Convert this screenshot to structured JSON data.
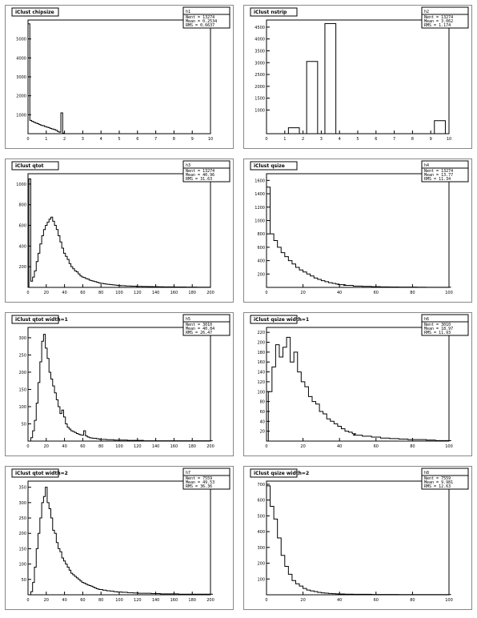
{
  "chart_data": [
    {
      "type": "bar",
      "title": "iClust chipsize",
      "xmin": 0,
      "xmax": 10,
      "xticks": [
        "0",
        "1",
        "2",
        "3",
        "4",
        "5",
        "6",
        "7",
        "8",
        "9",
        "10"
      ],
      "yticks": [
        "1000",
        "2000",
        "3000",
        "4000",
        "5000"
      ],
      "ymax": 6000,
      "stats": {
        "name": "h1",
        "entries": "13274",
        "mean": "0.2534",
        "rms": "0.6637"
      },
      "x": [
        0.05,
        0.15,
        0.25,
        0.35,
        0.45,
        0.55,
        0.65,
        0.75,
        0.85,
        0.95,
        1.05,
        1.15,
        1.25,
        1.35,
        1.45,
        1.55,
        1.65,
        1.75,
        1.85,
        1.95
      ],
      "values": [
        5800,
        700,
        650,
        600,
        560,
        530,
        480,
        440,
        420,
        380,
        350,
        320,
        280,
        250,
        220,
        180,
        120,
        80,
        1100,
        30
      ]
    },
    {
      "type": "bar",
      "title": "iClust nstrip",
      "xmin": 0,
      "xmax": 10,
      "xticks": [
        "0",
        "1",
        "2",
        "3",
        "4",
        "5",
        "6",
        "7",
        "8",
        "9",
        "10"
      ],
      "yticks": [
        "1000",
        "1500",
        "2000",
        "2500",
        "3000",
        "3500",
        "4000",
        "4500"
      ],
      "ymax": 4800,
      "stats": {
        "name": "h2",
        "entries": "13274",
        "mean": "3.062",
        "rms": "1.174"
      },
      "x": [
        1.5,
        2.5,
        3.5,
        9.5
      ],
      "values": [
        250,
        3050,
        4650,
        550
      ]
    },
    {
      "type": "bar",
      "title": "iClust qtot",
      "xmin": 0,
      "xmax": 200,
      "xticks": [
        "0",
        "20",
        "40",
        "60",
        "80",
        "100",
        "120",
        "140",
        "160",
        "180",
        "200"
      ],
      "yticks": [
        "200",
        "400",
        "600",
        "800",
        "1000"
      ],
      "ymax": 1100,
      "stats": {
        "name": "h3",
        "entries": "13274",
        "mean": "40.96",
        "rms": "31.63"
      },
      "x": [
        2,
        4,
        6,
        8,
        10,
        12,
        14,
        16,
        18,
        20,
        22,
        24,
        26,
        28,
        30,
        32,
        34,
        36,
        38,
        40,
        42,
        44,
        46,
        48,
        50,
        52,
        54,
        56,
        58,
        60,
        62,
        64,
        66,
        68,
        70,
        72,
        74,
        76,
        78,
        80,
        82,
        84,
        86,
        88,
        90,
        92,
        94,
        96,
        98,
        100,
        104,
        110,
        116,
        122,
        128,
        134,
        140,
        146,
        152,
        158,
        164,
        170,
        176,
        182,
        188,
        194,
        198
      ],
      "values": [
        1050,
        60,
        100,
        160,
        250,
        330,
        420,
        500,
        560,
        600,
        630,
        660,
        680,
        640,
        600,
        560,
        500,
        440,
        380,
        330,
        300,
        270,
        230,
        200,
        180,
        160,
        150,
        130,
        110,
        100,
        95,
        85,
        80,
        70,
        65,
        60,
        55,
        50,
        45,
        40,
        38,
        35,
        32,
        30,
        28,
        26,
        24,
        22,
        20,
        18,
        16,
        14,
        12,
        10,
        9,
        8,
        7,
        6,
        5,
        5,
        4,
        4,
        3,
        3,
        2,
        2,
        2
      ]
    },
    {
      "type": "bar",
      "title": "iClust qsize",
      "xmin": 0,
      "xmax": 100,
      "xticks": [
        "0",
        "20",
        "40",
        "60",
        "80",
        "100"
      ],
      "yticks": [
        "200",
        "400",
        "600",
        "800",
        "1000",
        "1200",
        "1400",
        "1600"
      ],
      "ymax": 1700,
      "stats": {
        "name": "h4",
        "entries": "13274",
        "mean": "13.77",
        "rms": "11.34"
      },
      "x": [
        1,
        3,
        5,
        7,
        9,
        11,
        13,
        15,
        17,
        19,
        21,
        23,
        25,
        27,
        29,
        31,
        33,
        35,
        37,
        39,
        41,
        45,
        50,
        55,
        60,
        65,
        70,
        75,
        80,
        85,
        90,
        95,
        99
      ],
      "values": [
        1500,
        800,
        700,
        600,
        520,
        460,
        400,
        350,
        300,
        260,
        230,
        200,
        170,
        140,
        120,
        100,
        85,
        70,
        60,
        50,
        40,
        30,
        20,
        15,
        10,
        8,
        6,
        5,
        4,
        3,
        2,
        2,
        1
      ]
    },
    {
      "type": "bar",
      "title": "iClust qtot width=1",
      "xmin": 0,
      "xmax": 200,
      "xticks": [
        "0",
        "20",
        "40",
        "60",
        "80",
        "100",
        "120",
        "140",
        "160",
        "180",
        "200"
      ],
      "yticks": [
        "50",
        "100",
        "150",
        "200",
        "250",
        "300"
      ],
      "ymax": 330,
      "stats": {
        "name": "h5",
        "entries": "3010",
        "mean": "40.84",
        "rms": "26.47"
      },
      "x": [
        4,
        6,
        8,
        10,
        12,
        14,
        16,
        18,
        20,
        22,
        24,
        26,
        28,
        30,
        32,
        34,
        36,
        38,
        40,
        42,
        44,
        46,
        48,
        50,
        52,
        54,
        56,
        58,
        60,
        62,
        64,
        66,
        68,
        70,
        72,
        74,
        76,
        78,
        80,
        84,
        88,
        92,
        96,
        100,
        106,
        112,
        118,
        124,
        130,
        140,
        150,
        160,
        170,
        180,
        190,
        198
      ],
      "values": [
        10,
        30,
        60,
        110,
        170,
        230,
        290,
        310,
        270,
        240,
        200,
        180,
        160,
        140,
        120,
        100,
        80,
        90,
        70,
        50,
        40,
        35,
        30,
        28,
        25,
        22,
        20,
        18,
        17,
        30,
        15,
        12,
        10,
        9,
        8,
        8,
        7,
        6,
        5,
        5,
        4,
        4,
        3,
        3,
        3,
        2,
        2,
        2,
        1,
        1,
        1,
        1,
        1,
        1,
        1,
        1
      ]
    },
    {
      "type": "bar",
      "title": "iClust qsize width=1",
      "xmin": 0,
      "xmax": 100,
      "xticks": [
        "0",
        "20",
        "40",
        "60",
        "80",
        "100"
      ],
      "yticks": [
        "20",
        "40",
        "60",
        "80",
        "100",
        "120",
        "140",
        "160",
        "180",
        "200",
        "220"
      ],
      "ymax": 230,
      "stats": {
        "name": "h6",
        "entries": "3010",
        "mean": "18.97",
        "rms": "11.93"
      },
      "x": [
        2,
        4,
        6,
        8,
        10,
        12,
        14,
        16,
        18,
        20,
        22,
        24,
        26,
        28,
        30,
        32,
        34,
        36,
        38,
        40,
        42,
        44,
        46,
        48,
        50,
        55,
        60,
        65,
        70,
        75,
        80,
        85,
        90,
        95,
        99
      ],
      "values": [
        100,
        150,
        195,
        170,
        190,
        210,
        160,
        180,
        140,
        120,
        110,
        90,
        80,
        75,
        60,
        55,
        45,
        40,
        35,
        30,
        25,
        20,
        18,
        15,
        12,
        10,
        8,
        6,
        5,
        4,
        3,
        3,
        2,
        1,
        1
      ]
    },
    {
      "type": "bar",
      "title": "iClust qtot width=2",
      "xmin": 0,
      "xmax": 200,
      "xticks": [
        "0",
        "20",
        "40",
        "60",
        "80",
        "100",
        "120",
        "140",
        "160",
        "180",
        "200"
      ],
      "yticks": [
        "50",
        "100",
        "150",
        "200",
        "250",
        "300",
        "350"
      ],
      "ymax": 370,
      "stats": {
        "name": "h7",
        "entries": "7559",
        "mean": "49.53",
        "rms": "36.36"
      },
      "x": [
        4,
        6,
        8,
        10,
        12,
        14,
        16,
        18,
        20,
        22,
        24,
        26,
        28,
        30,
        32,
        34,
        36,
        38,
        40,
        42,
        44,
        46,
        48,
        50,
        52,
        54,
        56,
        58,
        60,
        62,
        64,
        66,
        68,
        70,
        72,
        74,
        76,
        78,
        80,
        84,
        88,
        92,
        96,
        100,
        106,
        112,
        118,
        124,
        130,
        140,
        150,
        160,
        170,
        180,
        190,
        198
      ],
      "values": [
        10,
        40,
        90,
        150,
        200,
        250,
        300,
        320,
        350,
        300,
        280,
        250,
        210,
        200,
        170,
        150,
        140,
        120,
        110,
        100,
        90,
        80,
        70,
        65,
        60,
        55,
        50,
        45,
        40,
        38,
        35,
        32,
        30,
        28,
        25,
        22,
        20,
        18,
        17,
        15,
        13,
        12,
        10,
        9,
        8,
        7,
        6,
        5,
        5,
        4,
        3,
        3,
        2,
        2,
        2,
        2
      ]
    },
    {
      "type": "bar",
      "title": "iClust qsize width=2",
      "xmin": 0,
      "xmax": 100,
      "xticks": [
        "0",
        "20",
        "40",
        "60",
        "80",
        "100"
      ],
      "yticks": [
        "100",
        "200",
        "300",
        "400",
        "500",
        "600",
        "700"
      ],
      "ymax": 720,
      "stats": {
        "name": "h8",
        "entries": "7559",
        "mean": "9.981",
        "rms": "12.63"
      },
      "x": [
        1,
        3,
        5,
        7,
        9,
        11,
        13,
        15,
        17,
        19,
        21,
        23,
        25,
        27,
        29,
        31,
        33,
        35,
        37,
        39,
        41,
        45,
        50,
        55,
        60,
        65,
        70,
        75,
        80,
        85,
        90,
        95,
        99
      ],
      "values": [
        690,
        560,
        480,
        360,
        250,
        180,
        130,
        90,
        70,
        55,
        40,
        30,
        25,
        20,
        15,
        12,
        10,
        8,
        7,
        6,
        5,
        4,
        3,
        3,
        2,
        2,
        2,
        1,
        1,
        1,
        1,
        1,
        1
      ]
    }
  ]
}
